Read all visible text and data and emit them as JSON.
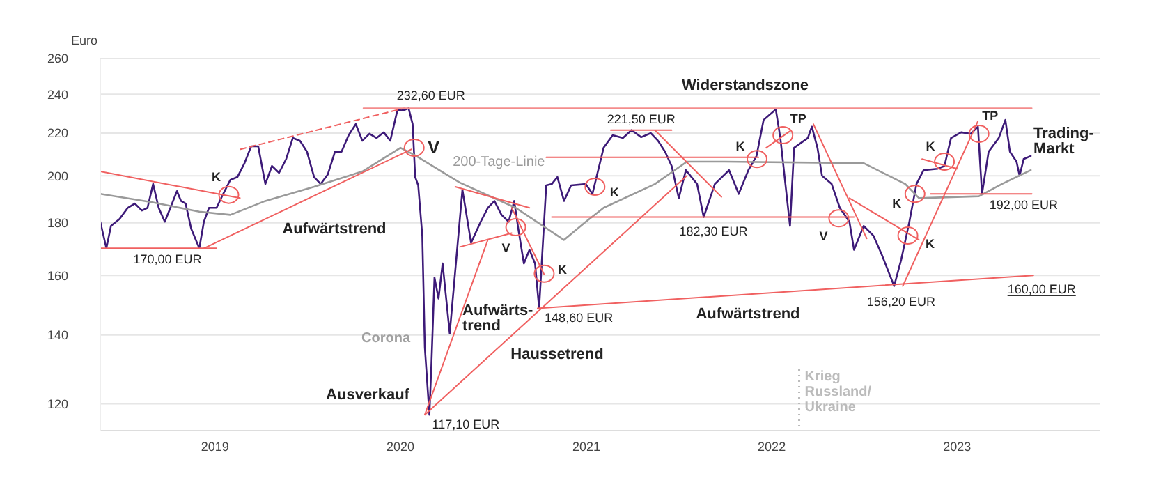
{
  "chart_data": {
    "type": "line",
    "ylabel": "Euro",
    "log": true,
    "grid": "y",
    "legend": false,
    "xlim": [
      "2018-05-20",
      "2023-10-10"
    ],
    "xticks": [
      "2019",
      "2020",
      "2021",
      "2022",
      "2023"
    ],
    "ylim": [
      113,
      260
    ],
    "yticks": [
      120,
      140,
      160,
      180,
      200,
      220,
      240,
      260
    ],
    "series": [
      {
        "color": "#3d1a78",
        "x": [
          "2018-05-20",
          "2018-06-01",
          "2018-06-10",
          "2018-06-27",
          "2018-07-13",
          "2018-07-27",
          "2018-08-10",
          "2018-08-21",
          "2018-09-01",
          "2018-09-12",
          "2018-09-24",
          "2018-10-05",
          "2018-10-18",
          "2018-10-26",
          "2018-11-04",
          "2018-11-15",
          "2018-12-01",
          "2018-12-10",
          "2018-12-20",
          "2019-01-04",
          "2019-01-17",
          "2019-01-31",
          "2019-02-14",
          "2019-02-28",
          "2019-03-13",
          "2019-03-27",
          "2019-04-10",
          "2019-04-23",
          "2019-05-07",
          "2019-05-21",
          "2019-06-03",
          "2019-06-17",
          "2019-07-01",
          "2019-07-15",
          "2019-07-28",
          "2019-08-11",
          "2019-08-25",
          "2019-09-07",
          "2019-09-21",
          "2019-10-05",
          "2019-10-18",
          "2019-11-01",
          "2019-11-15",
          "2019-11-29",
          "2019-12-12",
          "2019-12-26",
          "2020-01-08",
          "2020-01-17",
          "2020-01-25",
          "2020-01-30",
          "2020-02-05",
          "2020-02-13",
          "2020-02-18",
          "2020-02-27",
          "2020-03-02",
          "2020-03-08",
          "2020-03-16",
          "2020-03-24",
          "2020-04-07",
          "2020-05-02",
          "2020-05-19",
          "2020-06-07",
          "2020-06-21",
          "2020-07-04",
          "2020-07-18",
          "2020-08-01",
          "2020-08-12",
          "2020-08-20",
          "2020-08-31",
          "2020-09-11",
          "2020-09-22",
          "2020-09-30",
          "2020-10-14",
          "2020-10-25",
          "2020-11-05",
          "2020-11-18",
          "2020-12-02",
          "2020-12-31",
          "2021-01-13",
          "2021-02-04",
          "2021-02-22",
          "2021-03-14",
          "2021-03-31",
          "2021-04-19",
          "2021-05-08",
          "2021-05-22",
          "2021-06-05",
          "2021-06-18",
          "2021-07-02",
          "2021-07-16",
          "2021-08-07",
          "2021-08-20",
          "2021-09-11",
          "2021-10-09",
          "2021-10-28",
          "2021-11-16",
          "2021-12-02",
          "2021-12-16",
          "2022-01-09",
          "2022-01-18",
          "2022-02-06",
          "2022-02-14",
          "2022-03-13",
          "2022-03-21",
          "2022-04-01",
          "2022-04-10",
          "2022-04-29",
          "2022-05-15",
          "2022-06-03",
          "2022-06-12",
          "2022-07-01",
          "2022-07-20",
          "2022-08-05",
          "2022-08-30",
          "2022-09-13",
          "2022-09-29",
          "2022-10-13",
          "2022-10-27",
          "2022-11-23",
          "2022-12-07",
          "2022-12-20",
          "2023-01-09",
          "2023-01-28",
          "2023-02-11",
          "2023-02-19",
          "2023-03-04",
          "2023-03-24",
          "2023-04-06",
          "2023-04-15",
          "2023-04-28",
          "2023-05-04",
          "2023-05-12",
          "2023-05-26"
        ],
        "values": [
          180.4,
          170,
          178.7,
          181.5,
          186.1,
          187.9,
          185,
          186.1,
          196.3,
          186.1,
          180.4,
          186.1,
          193.2,
          189,
          187.9,
          177.6,
          170,
          180.4,
          186.1,
          186.1,
          192,
          198.1,
          199.4,
          205.7,
          213.6,
          213.6,
          196.3,
          204.4,
          201.3,
          207.6,
          217.6,
          216.3,
          211,
          199.4,
          196.3,
          200.6,
          211,
          211,
          219,
          224.5,
          216.3,
          219.7,
          217.6,
          220.4,
          216.3,
          231.6,
          231.6,
          232.6,
          224.5,
          199.4,
          195.7,
          174.9,
          136.2,
          117.1,
          131.2,
          159.2,
          151.9,
          164.3,
          140.5,
          193.8,
          172.1,
          180.4,
          186.1,
          189,
          183.2,
          180.4,
          189,
          177.6,
          164.3,
          169.4,
          164.3,
          148.6,
          195.7,
          196.3,
          199.4,
          189,
          195.7,
          196.3,
          192,
          212.9,
          219,
          217.6,
          221.5,
          218,
          220,
          216.3,
          211,
          204.4,
          190.2,
          202.5,
          196.3,
          182.3,
          196.3,
          202.5,
          192,
          202.5,
          209,
          226.6,
          232,
          217.6,
          178.7,
          212.9,
          217.6,
          223.2,
          212.9,
          200,
          196.3,
          186.1,
          180.4,
          169.4,
          178.7,
          174.9,
          167.9,
          156.2,
          165.8,
          180.4,
          196.3,
          202.5,
          203.1,
          204.4,
          217.6,
          220.4,
          219.7,
          223.2,
          192,
          211,
          217.6,
          226.6,
          211,
          206.4,
          200,
          207.6,
          209
        ]
      },
      {
        "name": "200-Tage-Linie",
        "color": "#9a9a9a",
        "x": [
          "2018-05-20",
          "2018-09-01",
          "2018-12-01",
          "2019-01-31",
          "2019-04-10",
          "2019-07-15",
          "2019-10-18",
          "2020-01-01",
          "2020-01-28",
          "2020-04-27",
          "2020-08-15",
          "2020-11-18",
          "2020-12-31",
          "2021-02-04",
          "2021-05-16",
          "2021-07-18",
          "2021-09-30",
          "2022-07-01",
          "2022-09-21",
          "2022-10-18",
          "2023-02-13",
          "2023-03-30",
          "2023-05-26"
        ],
        "values": [
          192,
          188.4,
          184.5,
          183.2,
          189,
          195.1,
          201.9,
          212.9,
          209.6,
          196.9,
          186.1,
          173.2,
          180.4,
          186.1,
          196.3,
          206.4,
          206.4,
          205.7,
          196.3,
          190.2,
          191,
          196.3,
          202.5
        ]
      },
      {
        "color": "#f06060",
        "x": [
          "2018-05-20",
          "2019-01-04"
        ],
        "values": [
          170,
          170
        ]
      },
      {
        "color": "#f06060",
        "x": [
          "2018-05-20",
          "2019-02-19"
        ],
        "values": [
          201.9,
          190.2
        ]
      },
      {
        "color": "#f06060",
        "x": [
          "2018-12-10",
          "2020-01-23"
        ],
        "values": [
          170,
          212.2
        ]
      },
      {
        "color": "#f06060",
        "line_style": "dashed",
        "x": [
          "2019-02-20",
          "2020-01-08"
        ],
        "values": [
          212.2,
          232.6
        ]
      },
      {
        "color": "#f48c8c",
        "x": [
          "2019-10-20",
          "2023-05-28"
        ],
        "values": [
          232.6,
          232.6
        ]
      },
      {
        "color": "#f06060",
        "x": [
          "2020-02-18",
          "2021-07-18"
        ],
        "values": [
          117.1,
          200
        ]
      },
      {
        "color": "#f06060",
        "x": [
          "2020-02-18",
          "2020-06-21"
        ],
        "values": [
          117.1,
          173.2
        ]
      },
      {
        "color": "#f06060",
        "x": [
          "2020-04-27",
          "2020-08-07"
        ],
        "values": [
          170.5,
          175.9
        ]
      },
      {
        "color": "#f06060",
        "x": [
          "2020-04-18",
          "2020-09-11"
        ],
        "values": [
          195.1,
          186.1
        ]
      },
      {
        "color": "#f06060",
        "x": [
          "2020-08-07",
          "2020-10-10"
        ],
        "values": [
          186.1,
          160.3
        ]
      },
      {
        "color": "#f06060",
        "x": [
          "2020-09-27",
          "2023-05-31"
        ],
        "values": [
          148.6,
          160
        ]
      },
      {
        "color": "#f06060",
        "x": [
          "2020-10-25",
          "2022-06-12"
        ],
        "values": [
          182.3,
          182.3
        ]
      },
      {
        "color": "#f06060",
        "x": [
          "2020-10-14",
          "2021-12-06"
        ],
        "values": [
          208.4,
          208.4
        ]
      },
      {
        "color": "#f06060",
        "x": [
          "2021-02-18",
          "2021-06-18"
        ],
        "values": [
          221.5,
          221.5
        ]
      },
      {
        "color": "#f06060",
        "x": [
          "2021-05-16",
          "2021-09-24"
        ],
        "values": [
          221.5,
          190.7
        ]
      },
      {
        "color": "#f06060",
        "x": [
          "2021-12-21",
          "2022-02-06"
        ],
        "values": [
          212.9,
          221
        ]
      },
      {
        "color": "#f06060",
        "x": [
          "2022-03-24",
          "2022-07-07"
        ],
        "values": [
          224.5,
          173.8
        ]
      },
      {
        "color": "#f06060",
        "x": [
          "2022-06-03",
          "2022-10-18"
        ],
        "values": [
          190.2,
          173.2
        ]
      },
      {
        "color": "#f06060",
        "x": [
          "2022-09-16",
          "2023-02-11"
        ],
        "values": [
          156.2,
          226
        ]
      },
      {
        "color": "#f06060",
        "x": [
          "2022-10-24",
          "2023-01-01"
        ],
        "values": [
          207.6,
          203.1
        ]
      },
      {
        "color": "#f06060",
        "x": [
          "2022-11-10",
          "2023-05-28"
        ],
        "values": [
          192,
          192
        ]
      }
    ],
    "ref_lines": [
      {
        "axis": "x",
        "value": "2022-02-24",
        "label": "Krieg\nRussland/\nUkraine",
        "color": "#bbbbbb",
        "line_style": "dotted"
      }
    ],
    "annotations": [
      {
        "text": "232,60 EUR",
        "x": "2020-01-17",
        "y": 232.6
      },
      {
        "text": "170,00 EUR",
        "x": "2018-09-10",
        "y": 170
      },
      {
        "text": "117,10 EUR",
        "x": "2020-02-27",
        "y": 117.1
      },
      {
        "text": "148,60 EUR",
        "x": "2020-09-30",
        "y": 148.6
      },
      {
        "text": "221,50 EUR",
        "x": "2021-04-19",
        "y": 221.5
      },
      {
        "text": "182,30 EUR",
        "x": "2021-08-20",
        "y": 182.3
      },
      {
        "text": "156,20 EUR",
        "x": "2022-08-30",
        "y": 156.2
      },
      {
        "text": "192,00 EUR",
        "x": "2023-05-12",
        "y": 192
      },
      {
        "text": "160,00 EUR",
        "x": "2023-05-31",
        "y": 160
      },
      "Widerstandszone",
      "Aufwärtstrend",
      "Aufwärts-\ntrend",
      "Haussetrend",
      "Ausverkauf",
      "Aufwärtstrend",
      "Trading-\nMarkt",
      "Corona",
      {
        "text": "K",
        "x": "2019-01-28",
        "y": 191.6
      },
      {
        "text": "V",
        "x": "2020-01-28",
        "y": 212.9
      },
      {
        "text": "V",
        "x": "2020-08-15",
        "y": 178.2
      },
      {
        "text": "K",
        "x": "2020-10-10",
        "y": 160.6
      },
      {
        "text": "K",
        "x": "2021-01-18",
        "y": 195.1
      },
      {
        "text": "K",
        "x": "2021-12-03",
        "y": 207.6
      },
      {
        "text": "TP",
        "x": "2022-01-23",
        "y": 219
      },
      {
        "text": "V",
        "x": "2022-05-13",
        "y": 181.8
      },
      {
        "text": "K",
        "x": "2022-10-10",
        "y": 192
      },
      {
        "text": "K",
        "x": "2022-09-26",
        "y": 174.9
      },
      {
        "text": "K",
        "x": "2022-12-07",
        "y": 206.4
      },
      {
        "text": "TP",
        "x": "2023-02-13",
        "y": 219.7
      }
    ]
  }
}
